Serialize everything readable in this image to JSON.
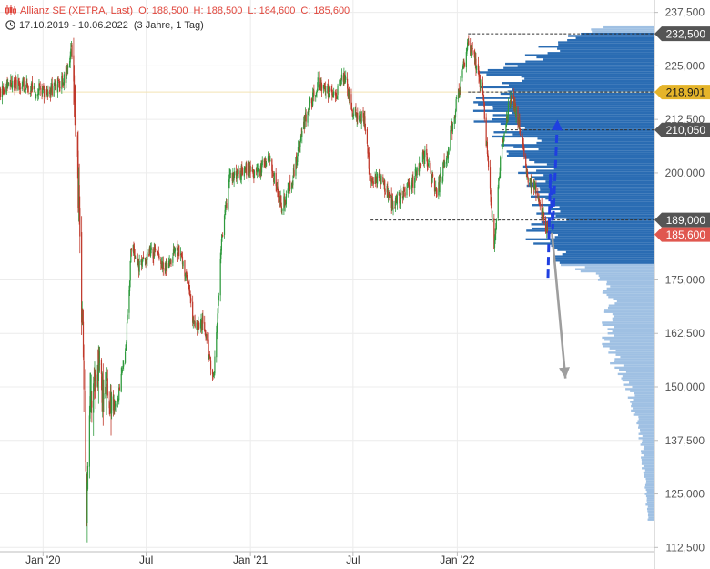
{
  "header": {
    "title": "Allianz SE (XETRA, Last)",
    "open": "O: 188,500",
    "high": "H: 188,500",
    "low": "L: 184,600",
    "close": "C: 185,600",
    "range": "17.10.2019 - 10.06.2022",
    "span": "(3 Jahre, 1 Tag)"
  },
  "chart_data": {
    "type": "candlestick",
    "y_axis": {
      "side": "right",
      "ylim": [
        111.5,
        240.4
      ],
      "ticks": [
        {
          "value": 237.5,
          "label": "237,500"
        },
        {
          "value": 225.0,
          "label": "225,000"
        },
        {
          "value": 212.5,
          "label": "212,500"
        },
        {
          "value": 200.0,
          "label": "200,000"
        },
        {
          "value": 175.0,
          "label": "175,000"
        },
        {
          "value": 162.5,
          "label": "162,500"
        },
        {
          "value": 150.0,
          "label": "150,000"
        },
        {
          "value": 137.5,
          "label": "137,500"
        },
        {
          "value": 125.0,
          "label": "125,000"
        },
        {
          "value": 112.5,
          "label": "112,500"
        }
      ]
    },
    "x_axis": {
      "range": [
        "2019-10-17",
        "2022-06-10"
      ],
      "ticks": [
        {
          "date": "2020-01-01",
          "label": "Jan '20"
        },
        {
          "date": "2020-07-01",
          "label": "Jul"
        },
        {
          "date": "2021-01-01",
          "label": "Jan '21"
        },
        {
          "date": "2021-07-01",
          "label": "Jul"
        },
        {
          "date": "2022-01-01",
          "label": "Jan '22"
        }
      ]
    },
    "price_path": [
      [
        "2019-10-17",
        219.0
      ],
      [
        "2019-11-15",
        221.0
      ],
      [
        "2019-12-15",
        220.0
      ],
      [
        "2020-01-10",
        219.0
      ],
      [
        "2020-02-10",
        222.0
      ],
      [
        "2020-02-20",
        230.0
      ],
      [
        "2020-02-25",
        215.0
      ],
      [
        "2020-03-05",
        190.0
      ],
      [
        "2020-03-12",
        155.0
      ],
      [
        "2020-03-18",
        120.0
      ],
      [
        "2020-03-26",
        150.0
      ],
      [
        "2020-04-10",
        153.0
      ],
      [
        "2020-04-25",
        148.0
      ],
      [
        "2020-05-08",
        145.0
      ],
      [
        "2020-05-25",
        157.0
      ],
      [
        "2020-06-05",
        183.0
      ],
      [
        "2020-06-20",
        178.0
      ],
      [
        "2020-07-10",
        182.0
      ],
      [
        "2020-08-01",
        178.0
      ],
      [
        "2020-08-25",
        182.0
      ],
      [
        "2020-09-10",
        176.0
      ],
      [
        "2020-09-25",
        163.0
      ],
      [
        "2020-10-10",
        165.0
      ],
      [
        "2020-10-28",
        152.0
      ],
      [
        "2020-11-10",
        182.0
      ],
      [
        "2020-11-25",
        199.0
      ],
      [
        "2020-12-10",
        200.0
      ],
      [
        "2020-12-31",
        201.0
      ],
      [
        "2021-01-15",
        200.0
      ],
      [
        "2021-02-01",
        204.0
      ],
      [
        "2021-02-25",
        192.0
      ],
      [
        "2021-03-15",
        198.0
      ],
      [
        "2021-04-10",
        214.0
      ],
      [
        "2021-05-01",
        221.0
      ],
      [
        "2021-06-01",
        218.0
      ],
      [
        "2021-06-15",
        223.0
      ],
      [
        "2021-07-01",
        214.0
      ],
      [
        "2021-07-20",
        213.0
      ],
      [
        "2021-08-01",
        198.0
      ],
      [
        "2021-08-20",
        199.0
      ],
      [
        "2021-09-10",
        192.0
      ],
      [
        "2021-09-30",
        196.0
      ],
      [
        "2021-10-15",
        198.0
      ],
      [
        "2021-11-05",
        205.0
      ],
      [
        "2021-11-25",
        195.0
      ],
      [
        "2021-12-15",
        205.0
      ],
      [
        "2022-01-05",
        220.0
      ],
      [
        "2022-01-20",
        230.0
      ],
      [
        "2022-02-01",
        226.0
      ],
      [
        "2022-02-15",
        219.0
      ],
      [
        "2022-02-25",
        200.0
      ],
      [
        "2022-03-07",
        183.0
      ],
      [
        "2022-03-20",
        206.0
      ],
      [
        "2022-04-05",
        218.0
      ],
      [
        "2022-04-20",
        212.0
      ],
      [
        "2022-05-05",
        198.0
      ],
      [
        "2022-05-20",
        196.0
      ],
      [
        "2022-06-01",
        190.0
      ],
      [
        "2022-06-10",
        185.6
      ]
    ],
    "price_labels": [
      {
        "value": 232.5,
        "label": "232,500",
        "bg": "#555555",
        "fg": "#ffffff"
      },
      {
        "value": 218.901,
        "label": "218,901",
        "bg": "#e5b42a",
        "fg": "#1a1a1a"
      },
      {
        "value": 210.05,
        "label": "210,050",
        "bg": "#555555",
        "fg": "#ffffff"
      },
      {
        "value": 189.0,
        "label": "189,000",
        "bg": "#555555",
        "fg": "#ffffff"
      },
      {
        "value": 185.6,
        "label": "185,600",
        "bg": "#e0574f",
        "fg": "#ffffff"
      }
    ],
    "levels": [
      {
        "value": 232.5,
        "from": "2022-01-20",
        "to": "2022-06-10"
      },
      {
        "value": 218.901,
        "from": "2022-01-20",
        "to": "2022-06-10"
      },
      {
        "value": 210.05,
        "from": "2022-03-20",
        "to": "2022-06-10"
      },
      {
        "value": 189.0,
        "from": "2021-08-01",
        "to": "2022-06-10"
      }
    ],
    "annotations": [
      {
        "kind": "arrow-dashed",
        "color": "#1f3fe0",
        "points": [
          [
            0.0,
            175.5
          ],
          [
            0.6,
            199.5
          ],
          [
            1.2,
            187.0
          ],
          [
            2.4,
            212.5
          ]
        ]
      },
      {
        "kind": "arrow",
        "color": "#9e9e9e",
        "points": [
          [
            1.0,
            186.0
          ],
          [
            4.4,
            152.0
          ]
        ]
      }
    ],
    "volume_profile": {
      "poc": 218.901,
      "value_area": [
        179.0,
        232.5
      ],
      "colors": {
        "in_value_area": "#2a6cb3",
        "outside": "#9fc0e3"
      }
    },
    "colors": {
      "up": "#2e9a3d",
      "down": "#c0392b",
      "grid": "#ececec",
      "axis": "#bdbdbd"
    }
  }
}
